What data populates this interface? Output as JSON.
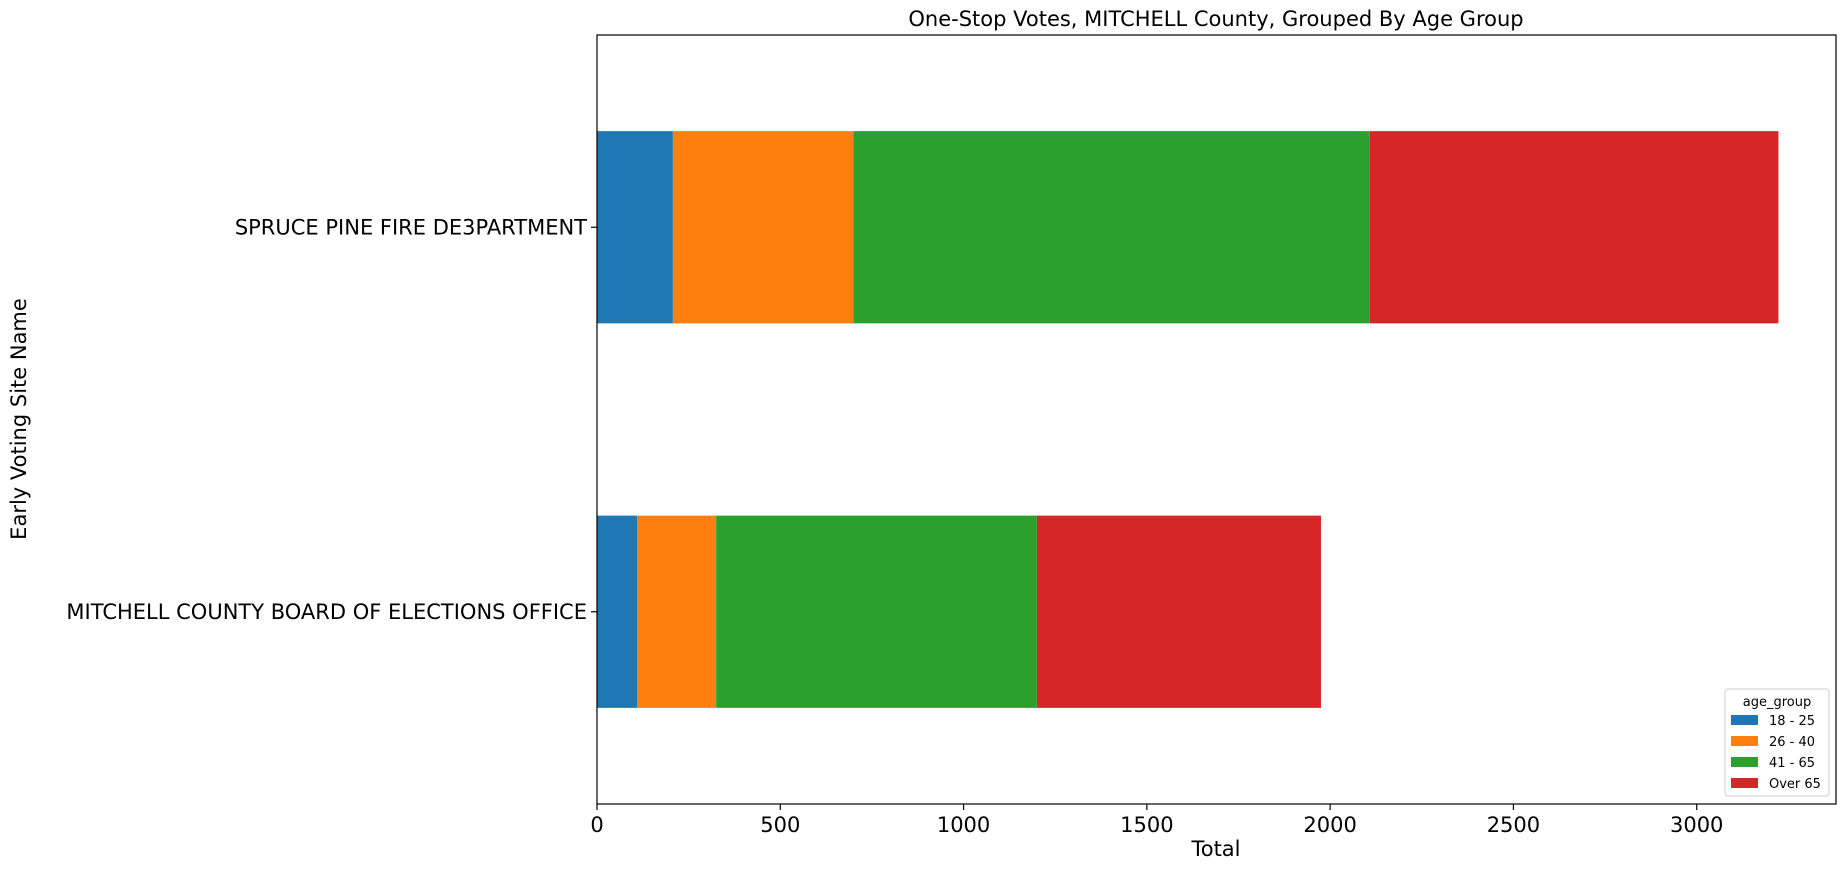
{
  "chart_data": {
    "type": "bar",
    "orientation": "horizontal",
    "stacked": true,
    "title": "One-Stop Votes, MITCHELL County, Grouped By Age Group",
    "xlabel": "Total",
    "ylabel": "Early Voting Site Name",
    "categories": [
      "MITCHELL COUNTY BOARD OF ELECTIONS OFFICE",
      "SPRUCE PINE FIRE DE3PARTMENT"
    ],
    "series": [
      {
        "name": "18 - 25",
        "color": "#1f77b4",
        "values": [
          110,
          207
        ]
      },
      {
        "name": "26 - 40",
        "color": "#ff7f0e",
        "values": [
          215,
          493
        ]
      },
      {
        "name": "41 - 65",
        "color": "#2ca02c",
        "values": [
          875,
          1408
        ]
      },
      {
        "name": "Over 65",
        "color": "#d62728",
        "values": [
          775,
          1115
        ]
      }
    ],
    "xlim": [
      0,
      3380
    ],
    "xticks": [
      0,
      500,
      1000,
      1500,
      2000,
      2500,
      3000
    ],
    "legend": {
      "title": "age_group",
      "position": "lower right"
    },
    "grid": false
  }
}
